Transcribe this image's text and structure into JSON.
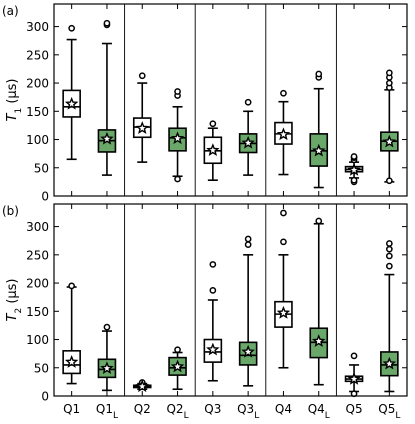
{
  "colors": {
    "normal_box": "#ffffff",
    "laser_box": "#6aa86a",
    "line": "#000000"
  },
  "chart_data": [
    {
      "type": "box",
      "panel_label": "(a)",
      "ylabel": "T",
      "ylabel_sub": "1",
      "ylabel_unit": " (µs)",
      "ylim": [
        0,
        340
      ],
      "yticks": [
        0,
        50,
        100,
        150,
        200,
        250,
        300
      ],
      "grid": false,
      "groups": [
        {
          "name": "Q1",
          "sub": "",
          "style": "normal",
          "q1": 140,
          "median": 158,
          "q3": 187,
          "whisker_low": 65,
          "whisker_high": 277,
          "mean": 163,
          "fliers": [
            297
          ]
        },
        {
          "name": "Q1",
          "sub": "L",
          "style": "laser",
          "q1": 78,
          "median": 98,
          "q3": 117,
          "whisker_low": 37,
          "whisker_high": 270,
          "mean": 101,
          "fliers": [
            303,
            306
          ]
        },
        {
          "name": "Q2",
          "sub": "",
          "style": "normal",
          "q1": 104,
          "median": 122,
          "q3": 138,
          "whisker_low": 60,
          "whisker_high": 200,
          "mean": 120,
          "fliers": [
            213
          ]
        },
        {
          "name": "Q2",
          "sub": "L",
          "style": "laser",
          "q1": 80,
          "median": 103,
          "q3": 120,
          "whisker_low": 35,
          "whisker_high": 158,
          "mean": 102,
          "fliers": [
            30,
            178,
            185
          ]
        },
        {
          "name": "Q3",
          "sub": "",
          "style": "normal",
          "q1": 58,
          "median": 80,
          "q3": 104,
          "whisker_low": 28,
          "whisker_high": 120,
          "mean": 81,
          "fliers": [
            128
          ]
        },
        {
          "name": "Q3",
          "sub": "L",
          "style": "laser",
          "q1": 77,
          "median": 93,
          "q3": 110,
          "whisker_low": 37,
          "whisker_high": 150,
          "mean": 94,
          "fliers": [
            166
          ]
        },
        {
          "name": "Q4",
          "sub": "",
          "style": "normal",
          "q1": 92,
          "median": 110,
          "q3": 130,
          "whisker_low": 38,
          "whisker_high": 167,
          "mean": 109,
          "fliers": [
            182
          ]
        },
        {
          "name": "Q4",
          "sub": "L",
          "style": "laser",
          "q1": 53,
          "median": 80,
          "q3": 110,
          "whisker_low": 15,
          "whisker_high": 190,
          "mean": 80,
          "fliers": [
            210,
            216
          ]
        },
        {
          "name": "Q5",
          "sub": "",
          "style": "normal",
          "q1": 43,
          "median": 47,
          "q3": 52,
          "whisker_low": 32,
          "whisker_high": 60,
          "mean": 46,
          "fliers": [
            25,
            28,
            64,
            68,
            70
          ]
        },
        {
          "name": "Q5",
          "sub": "L",
          "style": "laser",
          "q1": 80,
          "median": 97,
          "q3": 113,
          "whisker_low": 25,
          "whisker_high": 188,
          "mean": 96,
          "fliers": [
            27,
            192,
            200,
            210,
            218
          ]
        }
      ]
    },
    {
      "type": "box",
      "panel_label": "(b)",
      "ylabel": "T",
      "ylabel_sub": "2",
      "ylabel_unit": " (µs)",
      "ylim": [
        0,
        340
      ],
      "yticks": [
        0,
        50,
        100,
        150,
        200,
        250,
        300
      ],
      "grid": false,
      "groups": [
        {
          "name": "Q1",
          "sub": "",
          "style": "normal",
          "q1": 40,
          "median": 55,
          "q3": 80,
          "whisker_low": 22,
          "whisker_high": 193,
          "mean": 60,
          "fliers": [
            195
          ]
        },
        {
          "name": "Q1",
          "sub": "L",
          "style": "laser",
          "q1": 33,
          "median": 47,
          "q3": 65,
          "whisker_low": 10,
          "whisker_high": 115,
          "mean": 49,
          "fliers": [
            122
          ]
        },
        {
          "name": "Q2",
          "sub": "",
          "style": "normal",
          "q1": 15,
          "median": 17,
          "q3": 19,
          "whisker_low": 12,
          "whisker_high": 22,
          "mean": 17,
          "fliers": [
            24
          ]
        },
        {
          "name": "Q2",
          "sub": "L",
          "style": "laser",
          "q1": 37,
          "median": 50,
          "q3": 68,
          "whisker_low": 12,
          "whisker_high": 77,
          "mean": 52,
          "fliers": [
            82
          ]
        },
        {
          "name": "Q3",
          "sub": "",
          "style": "normal",
          "q1": 60,
          "median": 78,
          "q3": 100,
          "whisker_low": 27,
          "whisker_high": 170,
          "mean": 82,
          "fliers": [
            187,
            233
          ]
        },
        {
          "name": "Q3",
          "sub": "L",
          "style": "laser",
          "q1": 55,
          "median": 72,
          "q3": 95,
          "whisker_low": 18,
          "whisker_high": 250,
          "mean": 78,
          "fliers": [
            268,
            278
          ]
        },
        {
          "name": "Q4",
          "sub": "",
          "style": "normal",
          "q1": 122,
          "median": 145,
          "q3": 167,
          "whisker_low": 50,
          "whisker_high": 250,
          "mean": 147,
          "fliers": [
            273,
            324
          ]
        },
        {
          "name": "Q4",
          "sub": "L",
          "style": "laser",
          "q1": 68,
          "median": 95,
          "q3": 120,
          "whisker_low": 20,
          "whisker_high": 305,
          "mean": 97,
          "fliers": [
            310
          ]
        },
        {
          "name": "Q5",
          "sub": "",
          "style": "normal",
          "q1": 26,
          "median": 30,
          "q3": 35,
          "whisker_low": 8,
          "whisker_high": 55,
          "mean": 30,
          "fliers": [
            4,
            71
          ]
        },
        {
          "name": "Q5",
          "sub": "L",
          "style": "laser",
          "q1": 36,
          "median": 55,
          "q3": 78,
          "whisker_low": 8,
          "whisker_high": 215,
          "mean": 57,
          "fliers": [
            230,
            248,
            260,
            270
          ]
        }
      ]
    }
  ]
}
